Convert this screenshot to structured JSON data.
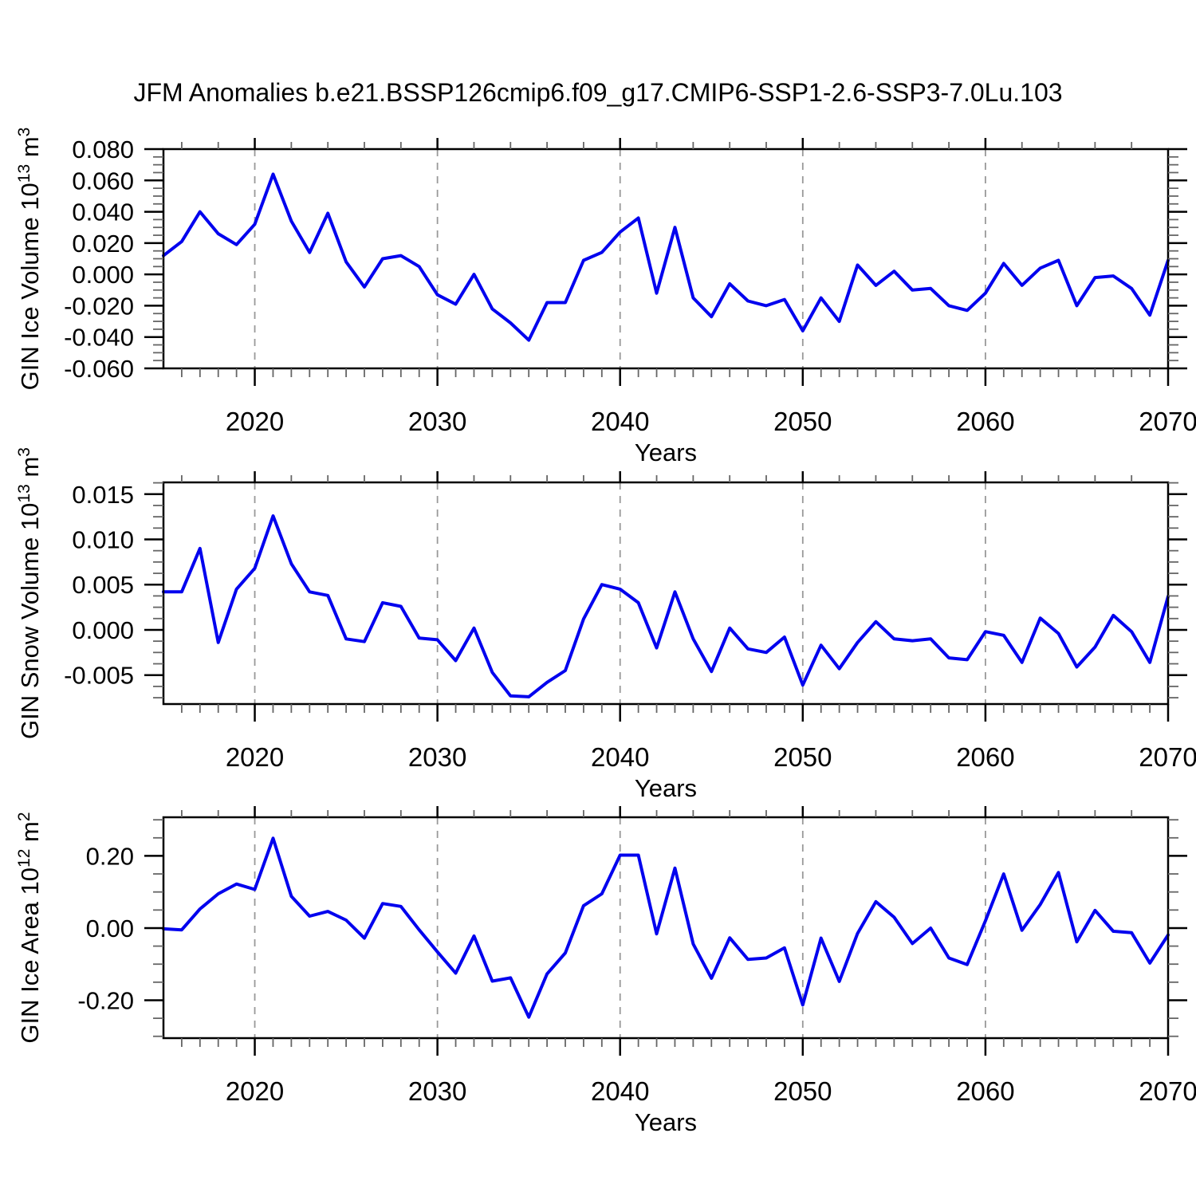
{
  "title": "JFM Anomalies b.e21.BSSP126cmip6.f09_g17.CMIP6-SSP1-2.6-SSP3-7.0Lu.103",
  "line_color": "#0202ee",
  "grid_color": "#999999",
  "axis_color": "#000000",
  "minor_tick_color": "#666666",
  "x_axis": {
    "label": "Years",
    "start": 2015,
    "end": 2070,
    "step": 1,
    "major_ticks": [
      2020,
      2030,
      2040,
      2050,
      2060,
      2070
    ],
    "major_tick_labels": [
      "2020",
      "2030",
      "2040",
      "2050",
      "2060",
      "2070"
    ],
    "gridline_years": [
      2020,
      2030,
      2040,
      2050,
      2060
    ],
    "minor_step_bottom": 1,
    "minor_step_top": 2
  },
  "chart_data": [
    {
      "type": "line",
      "name": "ice-volume",
      "ylabel": "GIN Ice Volume 10^13^ m^3^",
      "xlabel": "Years",
      "ylim": [
        -0.06,
        0.08
      ],
      "y_tick_labels": [
        "0.080",
        "0.060",
        "0.040",
        "0.020",
        "0.000",
        "-0.020",
        "-0.040",
        "-0.060"
      ],
      "y_tick_values": [
        0.08,
        0.06,
        0.04,
        0.02,
        0.0,
        -0.02,
        -0.04,
        -0.06
      ],
      "y_minor_step": 0.005,
      "values": [
        0.012,
        0.021,
        0.04,
        0.026,
        0.019,
        0.032,
        0.064,
        0.034,
        0.014,
        0.039,
        0.008,
        -0.008,
        0.01,
        0.012,
        0.005,
        -0.013,
        -0.019,
        0.0,
        -0.022,
        -0.031,
        -0.042,
        -0.018,
        -0.018,
        0.009,
        0.014,
        0.027,
        0.036,
        -0.012,
        0.03,
        -0.015,
        -0.027,
        -0.006,
        -0.017,
        -0.02,
        -0.016,
        -0.036,
        -0.015,
        -0.03,
        0.006,
        -0.007,
        0.002,
        -0.01,
        -0.009,
        -0.02,
        -0.023,
        -0.012,
        0.007,
        -0.007,
        0.004,
        0.009,
        -0.02,
        -0.002,
        -0.001,
        -0.009,
        -0.026,
        0.009
      ]
    },
    {
      "type": "line",
      "name": "snow-volume",
      "ylabel": "GIN Snow Volume 10^13^ m^3^",
      "xlabel": "Years",
      "ylim": [
        -0.0082,
        0.0163
      ],
      "y_tick_labels": [
        "0.015",
        "0.010",
        "0.005",
        "0.000",
        "-0.005"
      ],
      "y_tick_values": [
        0.015,
        0.01,
        0.005,
        0.0,
        -0.005
      ],
      "y_minor_step": 0.00125,
      "values": [
        0.0042,
        0.0042,
        0.009,
        -0.0014,
        0.0045,
        0.0068,
        0.0126,
        0.0073,
        0.0042,
        0.0038,
        -0.001,
        -0.0013,
        0.003,
        0.0026,
        -0.0009,
        -0.0011,
        -0.0034,
        0.0002,
        -0.0047,
        -0.0073,
        -0.0074,
        -0.0058,
        -0.0045,
        0.0012,
        0.005,
        0.0045,
        0.003,
        -0.002,
        0.0042,
        -0.001,
        -0.0046,
        0.0002,
        -0.0021,
        -0.0025,
        -0.0008,
        -0.0061,
        -0.0017,
        -0.0043,
        -0.0014,
        0.0009,
        -0.001,
        -0.0012,
        -0.001,
        -0.0031,
        -0.0033,
        -0.0002,
        -0.0006,
        -0.0036,
        0.0013,
        -0.0004,
        -0.0041,
        -0.0019,
        0.0016,
        -0.0002,
        -0.0036,
        0.0037
      ]
    },
    {
      "type": "line",
      "name": "ice-area",
      "ylabel": "GIN Ice Area 10^12^ m^2^",
      "xlabel": "Years",
      "ylim": [
        -0.305,
        0.307
      ],
      "y_tick_labels": [
        "0.20",
        "0.00",
        "-0.20"
      ],
      "y_tick_values": [
        0.2,
        0.0,
        -0.2
      ],
      "y_minor_step": 0.05,
      "values": [
        -0.002,
        -0.005,
        0.053,
        0.095,
        0.122,
        0.107,
        0.249,
        0.088,
        0.033,
        0.046,
        0.022,
        -0.028,
        0.068,
        0.06,
        -0.005,
        -0.066,
        -0.125,
        -0.022,
        -0.147,
        -0.138,
        -0.247,
        -0.127,
        -0.069,
        0.062,
        0.095,
        0.202,
        0.202,
        -0.016,
        0.166,
        -0.044,
        -0.139,
        -0.027,
        -0.087,
        -0.083,
        -0.055,
        -0.213,
        -0.028,
        -0.148,
        -0.015,
        0.073,
        0.03,
        -0.043,
        0.0,
        -0.083,
        -0.101,
        0.02,
        0.15,
        -0.006,
        0.065,
        0.154,
        -0.038,
        0.049,
        -0.009,
        -0.013,
        -0.097,
        -0.019
      ]
    }
  ]
}
